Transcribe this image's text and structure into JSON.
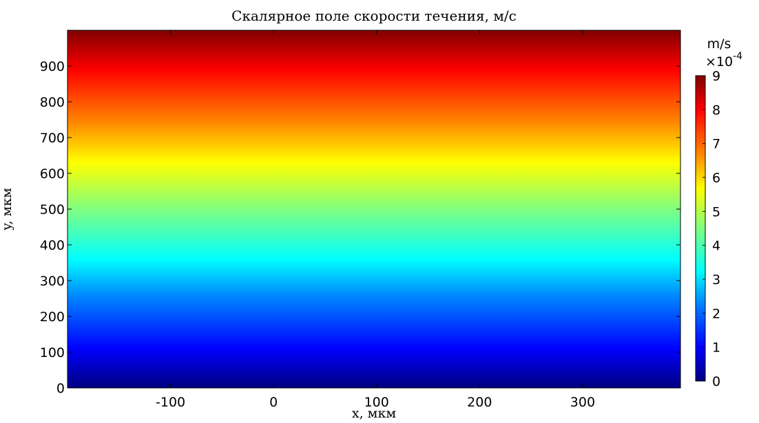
{
  "chart_data": {
    "type": "heatmap",
    "title": "Скалярное поле скорости течения, м/с",
    "xlabel": "x, мкм",
    "ylabel": "y, мкм",
    "xlim": [
      -200,
      395
    ],
    "ylim": [
      0,
      1000
    ],
    "x_ticks": [
      -100,
      0,
      100,
      200,
      300
    ],
    "y_ticks": [
      0,
      100,
      200,
      300,
      400,
      500,
      600,
      700,
      800,
      900
    ],
    "field_profile": {
      "description_axis": "y",
      "y": [
        0,
        1000
      ],
      "value": [
        0,
        9
      ]
    },
    "colorbar": {
      "unit": "m/s",
      "multiplier": "×10",
      "exponent": "-4",
      "range": [
        0,
        9
      ],
      "ticks": [
        0,
        1,
        2,
        3,
        4,
        5,
        6,
        7,
        8,
        9
      ],
      "colormap": "jet"
    }
  }
}
